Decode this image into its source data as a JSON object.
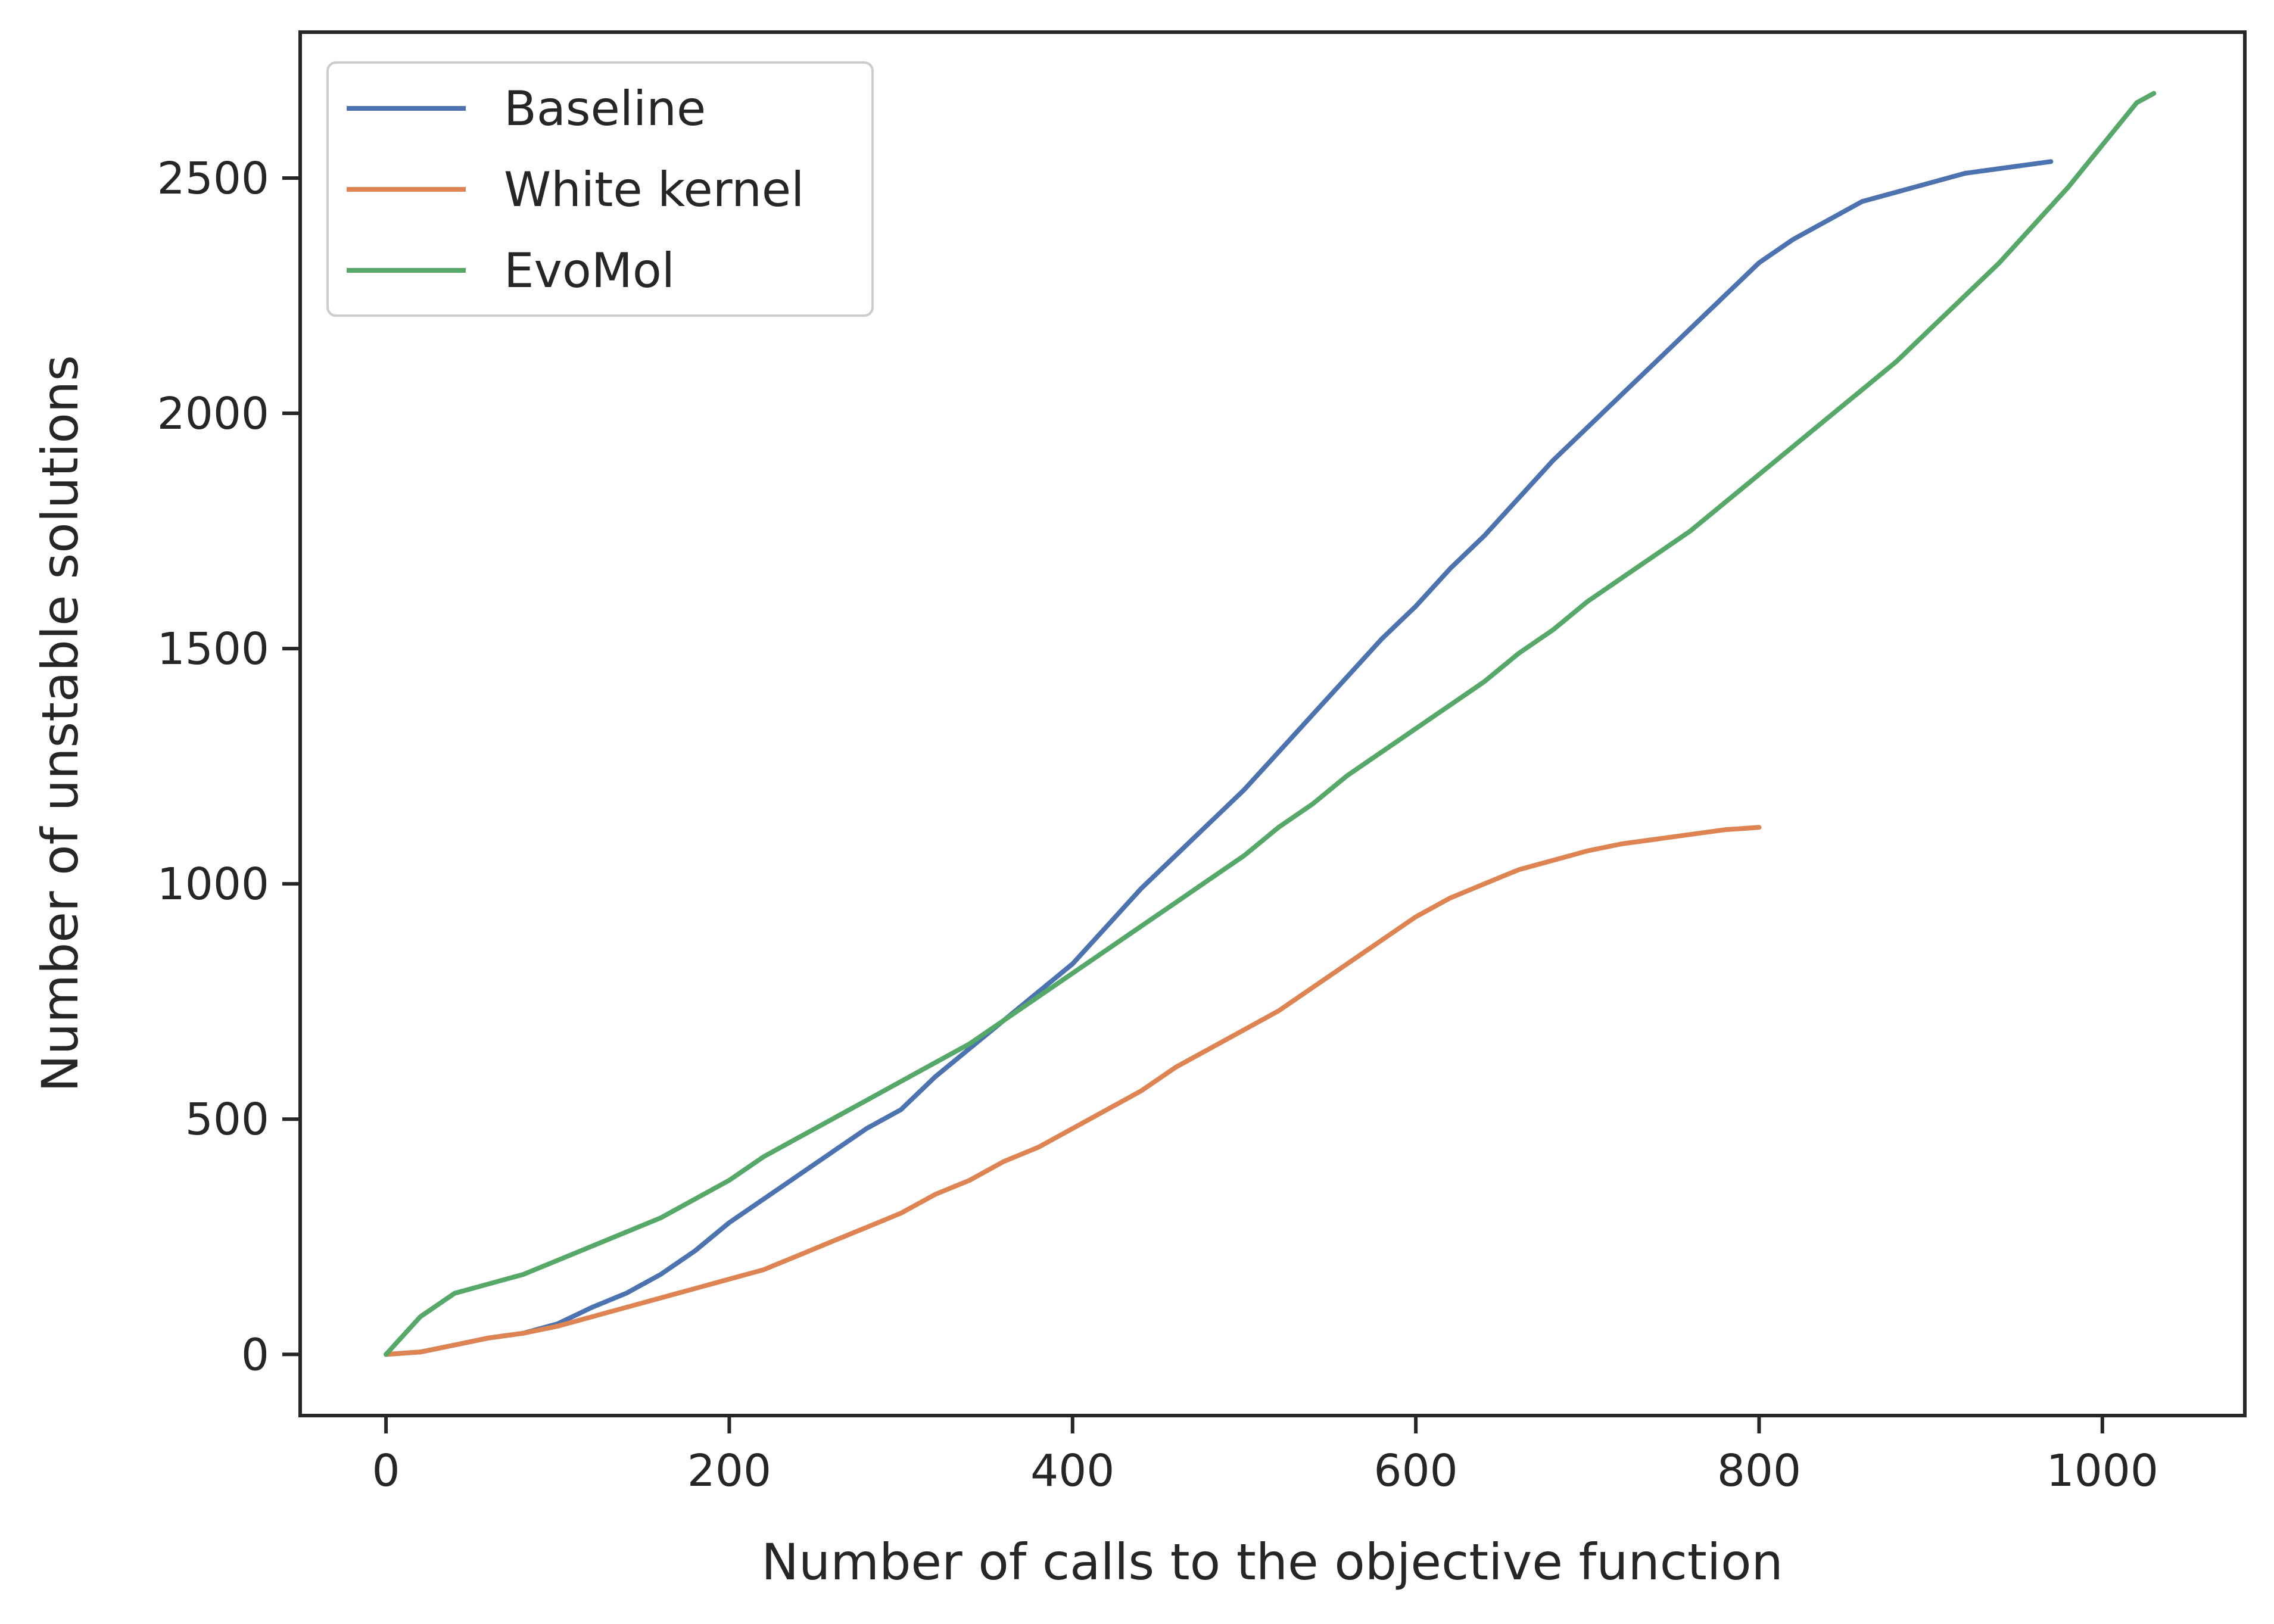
{
  "chart_data": {
    "type": "line",
    "title": "",
    "xlabel": "Number of calls to the objective function",
    "ylabel": "Number of unstable solutions",
    "xlim": [
      -50,
      1083
    ],
    "ylim": [
      -130,
      2810
    ],
    "xticks": [
      0,
      200,
      400,
      600,
      800,
      1000
    ],
    "yticks": [
      0,
      500,
      1000,
      1500,
      2000,
      2500
    ],
    "grid": false,
    "legend_position": "upper-left",
    "series": [
      {
        "name": "Baseline",
        "color": "#4c72b0",
        "x": [
          0,
          20,
          40,
          60,
          80,
          100,
          120,
          140,
          160,
          180,
          200,
          220,
          240,
          260,
          280,
          300,
          320,
          340,
          360,
          380,
          400,
          420,
          440,
          460,
          480,
          500,
          520,
          540,
          560,
          580,
          600,
          620,
          640,
          660,
          680,
          700,
          720,
          740,
          760,
          780,
          800,
          820,
          840,
          860,
          880,
          900,
          920,
          940,
          970
        ],
        "y": [
          0,
          5,
          20,
          35,
          45,
          65,
          100,
          130,
          170,
          220,
          280,
          330,
          380,
          430,
          480,
          520,
          590,
          650,
          710,
          770,
          830,
          910,
          990,
          1060,
          1130,
          1200,
          1280,
          1360,
          1440,
          1520,
          1590,
          1670,
          1740,
          1820,
          1900,
          1970,
          2040,
          2110,
          2180,
          2250,
          2320,
          2370,
          2410,
          2450,
          2470,
          2490,
          2510,
          2520,
          2535
        ]
      },
      {
        "name": "White kernel",
        "color": "#dd8452",
        "x": [
          0,
          20,
          40,
          60,
          80,
          100,
          120,
          140,
          160,
          180,
          200,
          220,
          240,
          260,
          280,
          300,
          320,
          340,
          360,
          380,
          400,
          420,
          440,
          460,
          480,
          500,
          520,
          540,
          560,
          580,
          600,
          620,
          640,
          660,
          680,
          700,
          720,
          740,
          760,
          780,
          800
        ],
        "y": [
          0,
          5,
          20,
          35,
          45,
          60,
          80,
          100,
          120,
          140,
          160,
          180,
          210,
          240,
          270,
          300,
          340,
          370,
          410,
          440,
          480,
          520,
          560,
          610,
          650,
          690,
          730,
          780,
          830,
          880,
          930,
          970,
          1000,
          1030,
          1050,
          1070,
          1085,
          1095,
          1105,
          1115,
          1120
        ]
      },
      {
        "name": "EvoMol",
        "color": "#55a868",
        "x": [
          0,
          20,
          40,
          60,
          80,
          100,
          120,
          140,
          160,
          180,
          200,
          220,
          240,
          260,
          280,
          300,
          320,
          340,
          360,
          380,
          400,
          420,
          440,
          460,
          480,
          500,
          520,
          540,
          560,
          580,
          600,
          620,
          640,
          660,
          680,
          700,
          720,
          740,
          760,
          780,
          800,
          820,
          840,
          860,
          880,
          900,
          920,
          940,
          960,
          980,
          1000,
          1020,
          1030
        ],
        "y": [
          0,
          80,
          130,
          150,
          170,
          200,
          230,
          260,
          290,
          330,
          370,
          420,
          460,
          500,
          540,
          580,
          620,
          660,
          710,
          760,
          810,
          860,
          910,
          960,
          1010,
          1060,
          1120,
          1170,
          1230,
          1280,
          1330,
          1380,
          1430,
          1490,
          1540,
          1600,
          1650,
          1700,
          1750,
          1810,
          1870,
          1930,
          1990,
          2050,
          2110,
          2180,
          2250,
          2320,
          2400,
          2480,
          2570,
          2660,
          2680
        ]
      }
    ]
  }
}
